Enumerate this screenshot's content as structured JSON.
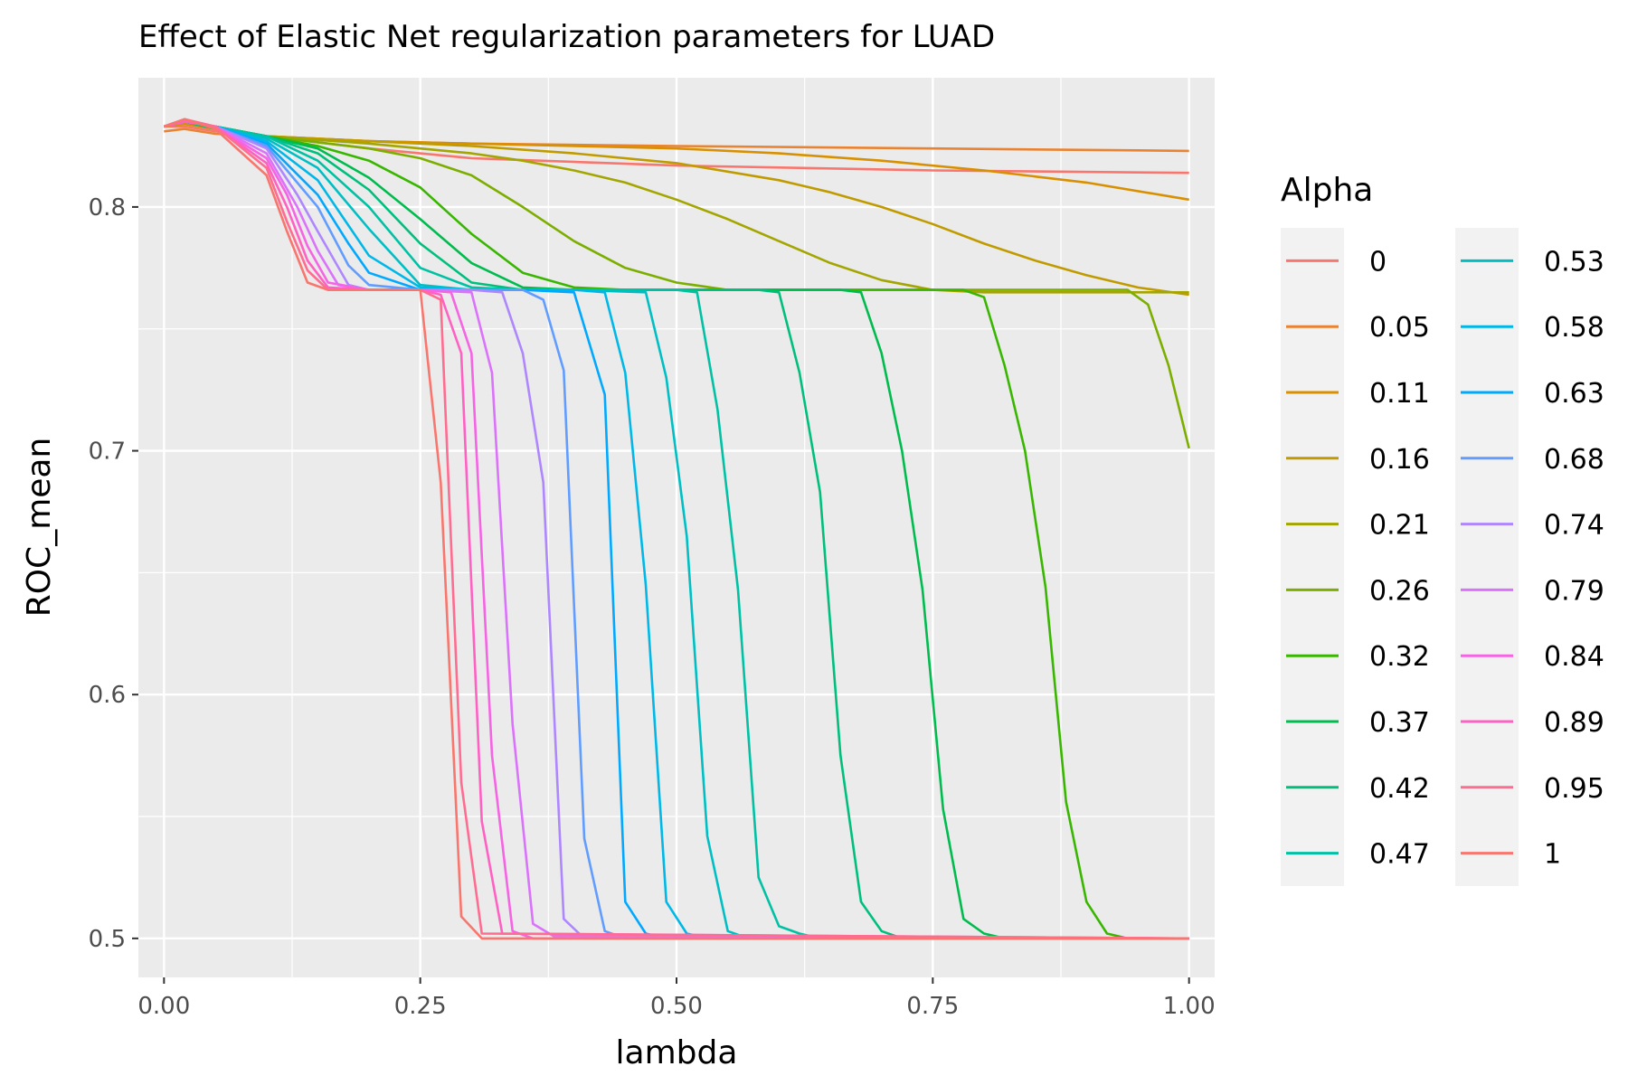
{
  "chart_data": {
    "type": "line",
    "title": "Effect of Elastic Net regularization parameters for LUAD",
    "xlabel": "lambda",
    "ylabel": "ROC_mean",
    "xlim": [
      -0.025,
      1.025
    ],
    "ylim": [
      0.484,
      0.853
    ],
    "x_ticks": [
      0,
      0.25,
      0.5,
      0.75,
      1
    ],
    "x_tick_labels": [
      "0.00",
      "0.25",
      "0.50",
      "0.75",
      "1.00"
    ],
    "y_ticks": [
      0.5,
      0.6,
      0.7,
      0.8
    ],
    "y_tick_labels": [
      "0.5",
      "0.6",
      "0.7",
      "0.8"
    ],
    "grid": true,
    "legend_title": "Alpha",
    "legend_position": "right",
    "series": [
      {
        "name": "0",
        "color": "#F8766D",
        "x": [
          0.0,
          0.02,
          0.05,
          0.1,
          0.2,
          0.3,
          0.5,
          0.75,
          1.0
        ],
        "y": [
          0.833,
          0.833,
          0.831,
          0.829,
          0.824,
          0.82,
          0.817,
          0.815,
          0.814
        ]
      },
      {
        "name": "0.05",
        "color": "#EA8331",
        "x": [
          0.0,
          0.02,
          0.05,
          0.1,
          0.2,
          0.3,
          0.5,
          0.75,
          1.0
        ],
        "y": [
          0.831,
          0.832,
          0.83,
          0.829,
          0.827,
          0.826,
          0.825,
          0.824,
          0.823
        ]
      },
      {
        "name": "0.11",
        "color": "#D89000",
        "x": [
          0.0,
          0.02,
          0.05,
          0.1,
          0.2,
          0.3,
          0.4,
          0.5,
          0.6,
          0.7,
          0.8,
          0.9,
          1.0
        ],
        "y": [
          0.833,
          0.834,
          0.832,
          0.829,
          0.827,
          0.826,
          0.825,
          0.824,
          0.822,
          0.819,
          0.815,
          0.81,
          0.803
        ]
      },
      {
        "name": "0.16",
        "color": "#C09B00",
        "x": [
          0.0,
          0.02,
          0.05,
          0.1,
          0.2,
          0.3,
          0.4,
          0.5,
          0.6,
          0.65,
          0.7,
          0.75,
          0.8,
          0.85,
          0.9,
          0.95,
          1.0
        ],
        "y": [
          0.833,
          0.835,
          0.832,
          0.829,
          0.827,
          0.825,
          0.822,
          0.818,
          0.811,
          0.806,
          0.8,
          0.793,
          0.785,
          0.778,
          0.772,
          0.767,
          0.764
        ]
      },
      {
        "name": "0.21",
        "color": "#A3A500",
        "x": [
          0.0,
          0.02,
          0.05,
          0.1,
          0.2,
          0.3,
          0.35,
          0.4,
          0.45,
          0.5,
          0.55,
          0.6,
          0.65,
          0.7,
          0.75,
          0.8,
          0.85,
          0.9,
          0.95,
          1.0
        ],
        "y": [
          0.833,
          0.835,
          0.833,
          0.829,
          0.826,
          0.822,
          0.819,
          0.815,
          0.81,
          0.803,
          0.795,
          0.786,
          0.777,
          0.77,
          0.766,
          0.765,
          0.765,
          0.765,
          0.765,
          0.765
        ]
      },
      {
        "name": "0.26",
        "color": "#7CAE00",
        "x": [
          0.0,
          0.02,
          0.05,
          0.1,
          0.2,
          0.25,
          0.3,
          0.35,
          0.4,
          0.45,
          0.5,
          0.55,
          0.6,
          0.7,
          0.8,
          0.9,
          0.94,
          0.96,
          0.98,
          1.0
        ],
        "y": [
          0.833,
          0.835,
          0.833,
          0.829,
          0.824,
          0.82,
          0.813,
          0.8,
          0.786,
          0.775,
          0.769,
          0.766,
          0.766,
          0.766,
          0.766,
          0.766,
          0.766,
          0.76,
          0.735,
          0.701
        ]
      },
      {
        "name": "0.32",
        "color": "#39B600",
        "x": [
          0.0,
          0.02,
          0.05,
          0.1,
          0.15,
          0.2,
          0.25,
          0.3,
          0.35,
          0.4,
          0.45,
          0.5,
          0.6,
          0.7,
          0.78,
          0.8,
          0.82,
          0.84,
          0.86,
          0.88,
          0.9,
          0.92,
          0.94,
          0.96,
          1.0
        ],
        "y": [
          0.833,
          0.835,
          0.833,
          0.829,
          0.825,
          0.819,
          0.808,
          0.789,
          0.773,
          0.767,
          0.766,
          0.766,
          0.766,
          0.766,
          0.766,
          0.763,
          0.735,
          0.7,
          0.644,
          0.556,
          0.515,
          0.502,
          0.5,
          0.5,
          0.5
        ]
      },
      {
        "name": "0.37",
        "color": "#00BB4E",
        "x": [
          0.0,
          0.02,
          0.05,
          0.1,
          0.15,
          0.2,
          0.25,
          0.3,
          0.35,
          0.4,
          0.5,
          0.6,
          0.66,
          0.68,
          0.7,
          0.72,
          0.74,
          0.76,
          0.78,
          0.8,
          0.82,
          0.84,
          1.0
        ],
        "y": [
          0.833,
          0.835,
          0.833,
          0.829,
          0.824,
          0.812,
          0.795,
          0.777,
          0.767,
          0.766,
          0.766,
          0.766,
          0.766,
          0.765,
          0.74,
          0.7,
          0.643,
          0.553,
          0.508,
          0.502,
          0.5,
          0.5,
          0.5
        ]
      },
      {
        "name": "0.42",
        "color": "#00BF7D",
        "x": [
          0.0,
          0.02,
          0.05,
          0.1,
          0.15,
          0.2,
          0.25,
          0.3,
          0.35,
          0.4,
          0.5,
          0.58,
          0.6,
          0.62,
          0.64,
          0.66,
          0.68,
          0.7,
          0.72,
          0.74,
          1.0
        ],
        "y": [
          0.833,
          0.835,
          0.832,
          0.829,
          0.822,
          0.807,
          0.785,
          0.769,
          0.766,
          0.766,
          0.766,
          0.766,
          0.765,
          0.732,
          0.683,
          0.575,
          0.515,
          0.503,
          0.5,
          0.5,
          0.5
        ]
      },
      {
        "name": "0.47",
        "color": "#00C1A3",
        "x": [
          0.0,
          0.02,
          0.05,
          0.1,
          0.15,
          0.2,
          0.25,
          0.3,
          0.35,
          0.4,
          0.5,
          0.52,
          0.54,
          0.56,
          0.58,
          0.6,
          0.62,
          0.64,
          0.66,
          1.0
        ],
        "y": [
          0.833,
          0.835,
          0.833,
          0.829,
          0.819,
          0.8,
          0.775,
          0.767,
          0.766,
          0.766,
          0.766,
          0.765,
          0.717,
          0.643,
          0.525,
          0.505,
          0.502,
          0.5,
          0.5,
          0.5
        ]
      },
      {
        "name": "0.53",
        "color": "#00BFC4",
        "x": [
          0.0,
          0.02,
          0.05,
          0.1,
          0.15,
          0.2,
          0.25,
          0.3,
          0.35,
          0.4,
          0.47,
          0.49,
          0.51,
          0.53,
          0.55,
          0.57,
          0.59,
          1.0
        ],
        "y": [
          0.833,
          0.835,
          0.833,
          0.828,
          0.816,
          0.791,
          0.768,
          0.766,
          0.766,
          0.766,
          0.765,
          0.73,
          0.665,
          0.542,
          0.503,
          0.5,
          0.5,
          0.5
        ]
      },
      {
        "name": "0.58",
        "color": "#00B8E7",
        "x": [
          0.0,
          0.02,
          0.05,
          0.1,
          0.15,
          0.2,
          0.25,
          0.3,
          0.35,
          0.4,
          0.43,
          0.45,
          0.47,
          0.49,
          0.51,
          0.53,
          1.0
        ],
        "y": [
          0.833,
          0.835,
          0.833,
          0.827,
          0.811,
          0.78,
          0.767,
          0.766,
          0.766,
          0.766,
          0.765,
          0.732,
          0.645,
          0.515,
          0.502,
          0.5,
          0.5
        ]
      },
      {
        "name": "0.63",
        "color": "#00A9FF",
        "x": [
          0.0,
          0.02,
          0.05,
          0.1,
          0.15,
          0.18,
          0.2,
          0.25,
          0.3,
          0.35,
          0.4,
          0.43,
          0.45,
          0.47,
          0.49,
          1.0
        ],
        "y": [
          0.833,
          0.835,
          0.833,
          0.826,
          0.805,
          0.785,
          0.773,
          0.766,
          0.766,
          0.766,
          0.765,
          0.723,
          0.515,
          0.502,
          0.5,
          0.5
        ]
      },
      {
        "name": "0.68",
        "color": "#619CFF",
        "x": [
          0.0,
          0.02,
          0.05,
          0.1,
          0.15,
          0.18,
          0.2,
          0.25,
          0.3,
          0.35,
          0.37,
          0.39,
          0.41,
          0.43,
          0.45,
          1.0
        ],
        "y": [
          0.833,
          0.835,
          0.833,
          0.825,
          0.8,
          0.776,
          0.768,
          0.766,
          0.766,
          0.766,
          0.762,
          0.733,
          0.541,
          0.503,
          0.5,
          0.5
        ]
      },
      {
        "name": "0.74",
        "color": "#AE87FF",
        "x": [
          0.0,
          0.02,
          0.05,
          0.1,
          0.13,
          0.15,
          0.18,
          0.2,
          0.25,
          0.3,
          0.33,
          0.35,
          0.37,
          0.39,
          0.41,
          1.0
        ],
        "y": [
          0.833,
          0.835,
          0.833,
          0.824,
          0.805,
          0.79,
          0.768,
          0.766,
          0.766,
          0.766,
          0.765,
          0.74,
          0.687,
          0.508,
          0.5,
          0.5
        ]
      },
      {
        "name": "0.79",
        "color": "#DB72FB",
        "x": [
          0.0,
          0.02,
          0.05,
          0.1,
          0.13,
          0.15,
          0.17,
          0.2,
          0.25,
          0.3,
          0.32,
          0.34,
          0.36,
          0.38,
          1.0
        ],
        "y": [
          0.833,
          0.835,
          0.833,
          0.822,
          0.8,
          0.782,
          0.768,
          0.766,
          0.766,
          0.765,
          0.732,
          0.588,
          0.506,
          0.501,
          0.5
        ]
      },
      {
        "name": "0.84",
        "color": "#F564E3",
        "x": [
          0.0,
          0.02,
          0.05,
          0.1,
          0.12,
          0.14,
          0.16,
          0.2,
          0.25,
          0.28,
          0.3,
          0.32,
          0.34,
          0.36,
          1.0
        ],
        "y": [
          0.833,
          0.835,
          0.833,
          0.82,
          0.805,
          0.784,
          0.769,
          0.766,
          0.766,
          0.765,
          0.74,
          0.575,
          0.503,
          0.5,
          0.5
        ]
      },
      {
        "name": "0.89",
        "color": "#FF61C3",
        "x": [
          0.0,
          0.02,
          0.05,
          0.1,
          0.12,
          0.14,
          0.16,
          0.2,
          0.25,
          0.27,
          0.29,
          0.31,
          0.33,
          1.0
        ],
        "y": [
          0.833,
          0.835,
          0.833,
          0.818,
          0.8,
          0.778,
          0.767,
          0.766,
          0.766,
          0.764,
          0.74,
          0.548,
          0.502,
          0.5
        ]
      },
      {
        "name": "0.95",
        "color": "#FF6C91",
        "x": [
          0.0,
          0.02,
          0.05,
          0.1,
          0.12,
          0.14,
          0.16,
          0.2,
          0.25,
          0.27,
          0.29,
          0.31,
          1.0
        ],
        "y": [
          0.833,
          0.836,
          0.833,
          0.816,
          0.794,
          0.774,
          0.766,
          0.766,
          0.766,
          0.762,
          0.564,
          0.502,
          0.5
        ]
      },
      {
        "name": "1",
        "color": "#F8766D",
        "x": [
          0.0,
          0.02,
          0.05,
          0.1,
          0.12,
          0.14,
          0.16,
          0.2,
          0.25,
          0.27,
          0.29,
          0.31,
          1.0
        ],
        "y": [
          0.833,
          0.836,
          0.832,
          0.813,
          0.79,
          0.769,
          0.766,
          0.766,
          0.766,
          0.687,
          0.509,
          0.5,
          0.5
        ]
      }
    ]
  }
}
